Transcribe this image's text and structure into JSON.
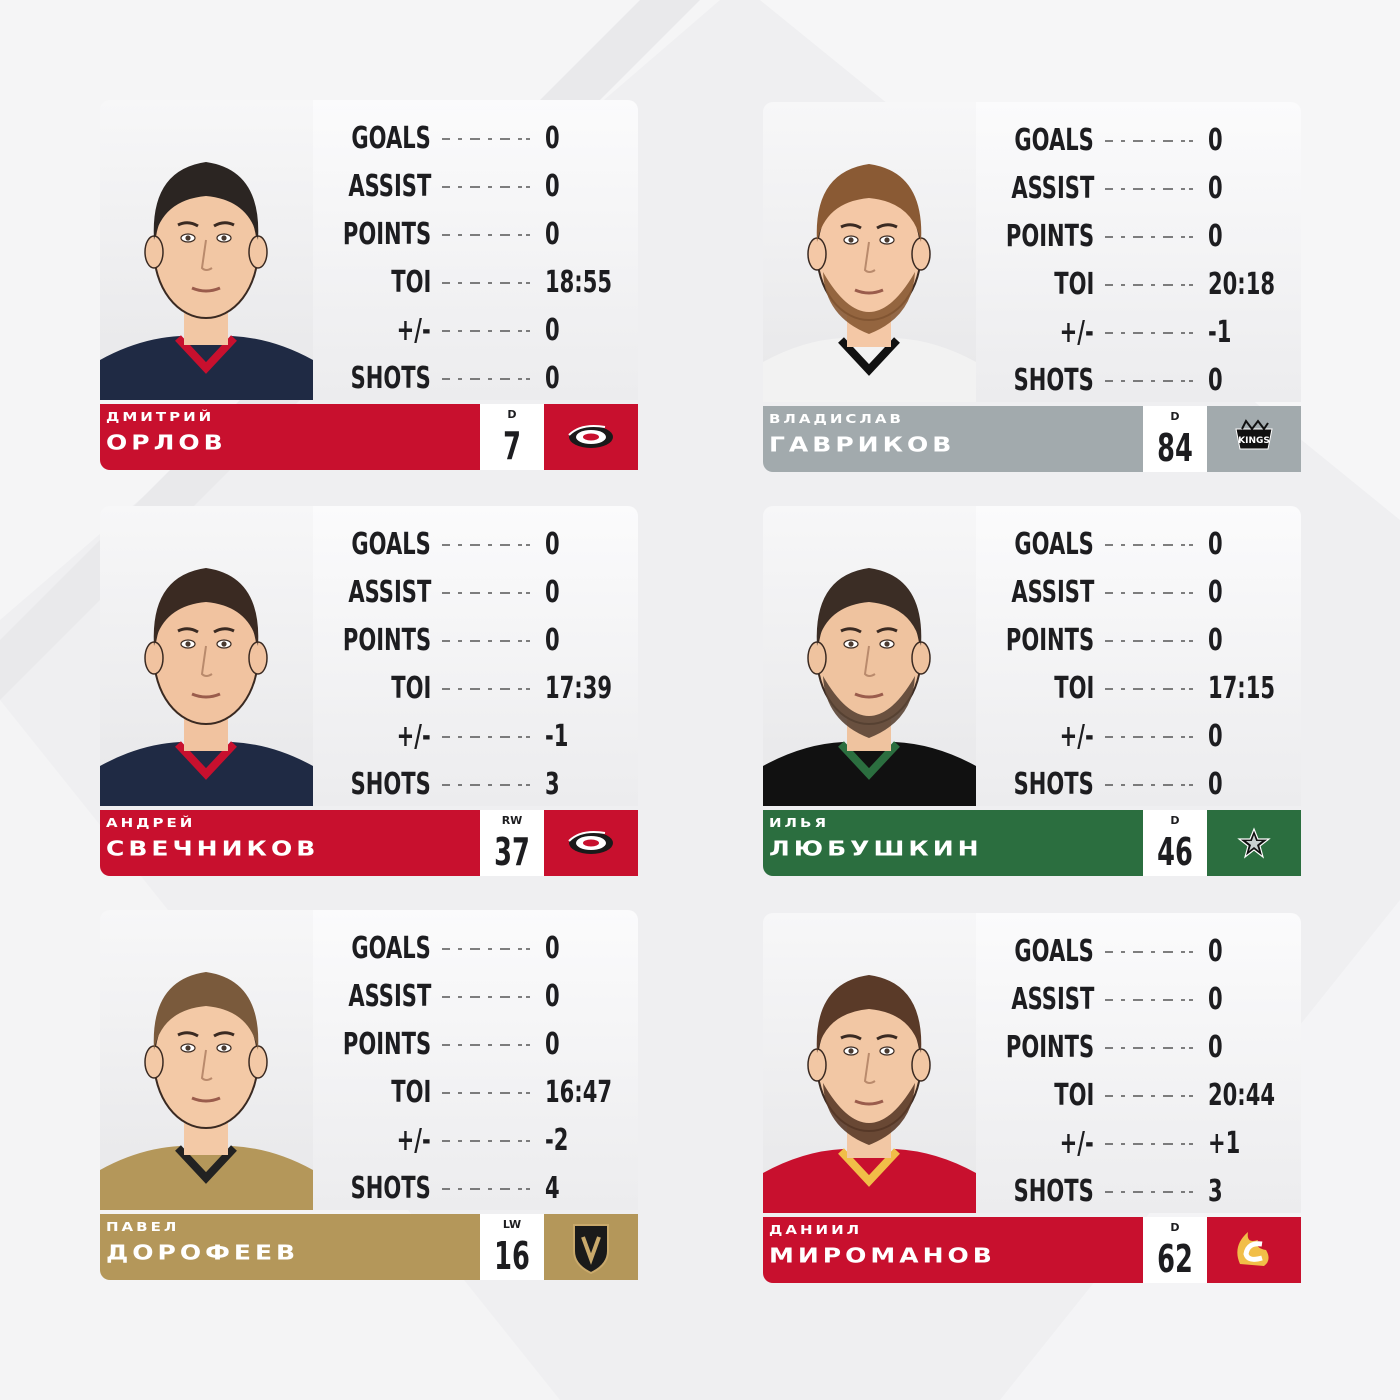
{
  "stat_labels": [
    "GOALS",
    "ASSIST",
    "POINTS",
    "TOI",
    "+/-",
    "SHOTS"
  ],
  "players": [
    {
      "first_name": "дмитрий",
      "last_name": "орлов",
      "position": "D",
      "number": "7",
      "team_logo": "carolina-hurricanes-logo",
      "team_color": "#c8102e",
      "stats": [
        "0",
        "0",
        "0",
        "18:55",
        "0",
        "0"
      ]
    },
    {
      "first_name": "владислав",
      "last_name": "гавриков",
      "position": "D",
      "number": "84",
      "team_logo": "los-angeles-kings-logo",
      "team_color": "#a2aaad",
      "stats": [
        "0",
        "0",
        "0",
        "20:18",
        "-1",
        "0"
      ]
    },
    {
      "first_name": "андрей",
      "last_name": "свечников",
      "position": "RW",
      "number": "37",
      "team_logo": "carolina-hurricanes-logo",
      "team_color": "#c8102e",
      "stats": [
        "0",
        "0",
        "0",
        "17:39",
        "-1",
        "3"
      ]
    },
    {
      "first_name": "илья",
      "last_name": "любушкин",
      "position": "D",
      "number": "46",
      "team_logo": "dallas-stars-logo",
      "team_color": "#2b6e3f",
      "stats": [
        "0",
        "0",
        "0",
        "17:15",
        "0",
        "0"
      ]
    },
    {
      "first_name": "павел",
      "last_name": "дорофеев",
      "position": "LW",
      "number": "16",
      "team_logo": "vegas-golden-knights-logo",
      "team_color": "#b4975a",
      "stats": [
        "0",
        "0",
        "0",
        "16:47",
        "-2",
        "4"
      ]
    },
    {
      "first_name": "даниил",
      "last_name": "мироманов",
      "position": "D",
      "number": "62",
      "team_logo": "calgary-flames-logo",
      "team_color": "#c8102e",
      "stats": [
        "0",
        "0",
        "0",
        "20:44",
        "+1",
        "3"
      ]
    }
  ]
}
